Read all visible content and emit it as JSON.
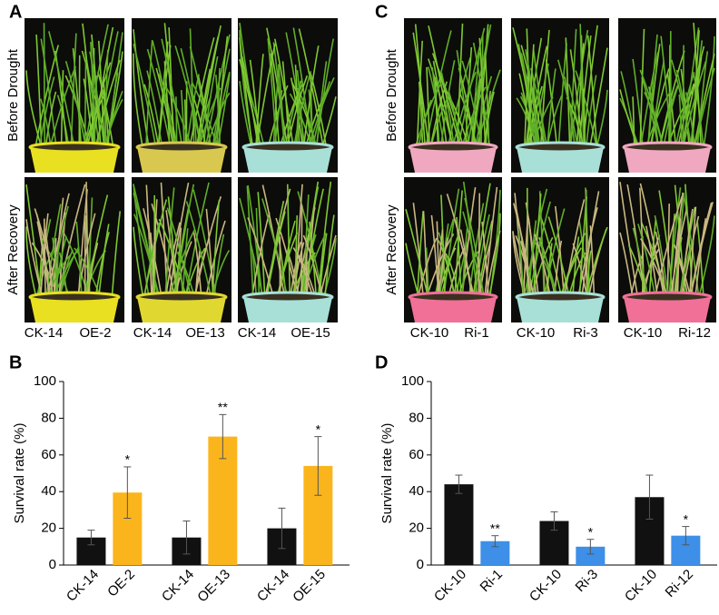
{
  "photo_panels": [
    {
      "label": "A",
      "row_labels": [
        "Before Drought",
        "After Recovery"
      ],
      "captions": [
        [
          "CK-14",
          "OE-2"
        ],
        [
          "CK-14",
          "OE-13"
        ],
        [
          "CK-14",
          "OE-15"
        ]
      ]
    },
    {
      "label": "C",
      "row_labels": [
        "Before Drought",
        "After Recovery"
      ],
      "captions": [
        [
          "CK-10",
          "Ri-1"
        ],
        [
          "CK-10",
          "Ri-3"
        ],
        [
          "CK-10",
          "Ri-12"
        ]
      ]
    }
  ],
  "chart_data": [
    {
      "type": "bar",
      "label": "B",
      "y_label": "Survival rate (%)",
      "categories": [
        "CK-14",
        "OE-2",
        "CK-14",
        "OE-13",
        "CK-14",
        "OE-15"
      ],
      "values": [
        15,
        39.5,
        15,
        70,
        20,
        54
      ],
      "errors": [
        4,
        14,
        9,
        12,
        11,
        16
      ],
      "significance": [
        null,
        "*",
        null,
        "**",
        null,
        "*"
      ],
      "colors": [
        "#111111",
        "#fbb51c",
        "#111111",
        "#fbb51c",
        "#111111",
        "#fbb51c"
      ],
      "ylim": [
        0,
        100
      ],
      "yticks": [
        0,
        20,
        40,
        60,
        80,
        100
      ]
    },
    {
      "type": "bar",
      "label": "D",
      "y_label": "Survival rate (%)",
      "categories": [
        "CK-10",
        "Ri-1",
        "CK-10",
        "Ri-3",
        "CK-10",
        "Ri-12"
      ],
      "values": [
        44,
        13,
        24,
        10,
        37,
        16
      ],
      "errors": [
        5,
        3,
        5,
        4,
        12,
        5
      ],
      "significance": [
        null,
        "**",
        null,
        "*",
        null,
        "*"
      ],
      "colors": [
        "#111111",
        "#3d8fe8",
        "#111111",
        "#3d8fe8",
        "#111111",
        "#3d8fe8"
      ],
      "ylim": [
        0,
        100
      ],
      "yticks": [
        0,
        20,
        40,
        60,
        80,
        100
      ]
    }
  ]
}
